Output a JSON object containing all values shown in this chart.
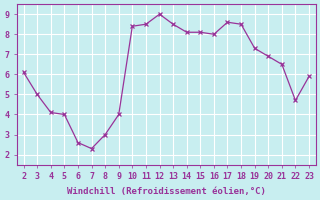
{
  "x": [
    2,
    3,
    4,
    5,
    6,
    7,
    8,
    9,
    10,
    11,
    12,
    13,
    14,
    15,
    16,
    17,
    18,
    19,
    20,
    21,
    22,
    23
  ],
  "y": [
    6.1,
    5.0,
    4.1,
    4.0,
    2.6,
    2.3,
    3.0,
    4.0,
    8.4,
    8.5,
    9.0,
    8.5,
    8.1,
    8.1,
    8.0,
    8.6,
    8.5,
    7.3,
    6.9,
    6.5,
    4.7,
    5.9
  ],
  "xlabel": "Windchill (Refroidissement éolien,°C)",
  "xlim": [
    1.5,
    23.5
  ],
  "ylim": [
    1.5,
    9.5
  ],
  "yticks": [
    2,
    3,
    4,
    5,
    6,
    7,
    8,
    9
  ],
  "xticks": [
    2,
    3,
    4,
    5,
    6,
    7,
    8,
    9,
    10,
    11,
    12,
    13,
    14,
    15,
    16,
    17,
    18,
    19,
    20,
    21,
    22,
    23
  ],
  "line_color": "#993399",
  "marker": "x",
  "bg_color": "#c8eef0",
  "grid_color": "#ffffff",
  "xlabel_color": "#993399",
  "tick_color": "#993399",
  "font_size_axis": 6.5,
  "font_size_ticks": 6
}
